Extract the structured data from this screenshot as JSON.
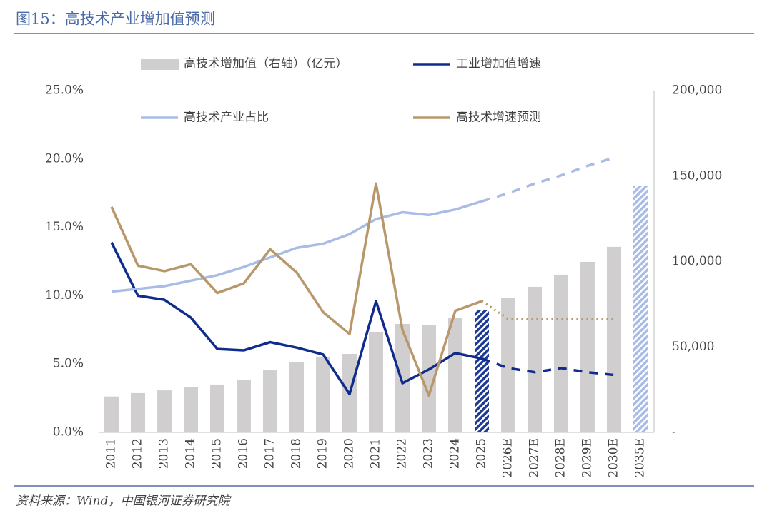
{
  "chart_data": {
    "type": "bar-line",
    "title": "图15：高技术产业增加值预测",
    "source": "资料来源：Wind，中国银河证券研究院",
    "categories": [
      "2011",
      "2012",
      "2013",
      "2014",
      "2015",
      "2016",
      "2017",
      "2018",
      "2019",
      "2020",
      "2021",
      "2022",
      "2023",
      "2024",
      "2025",
      "2026E",
      "2027E",
      "2028E",
      "2029E",
      "2030E",
      "2035E"
    ],
    "ylim": [
      0,
      25
    ],
    "yticks": [
      {
        "value": 0,
        "label": "0.0%"
      },
      {
        "value": 5,
        "label": "5.0%"
      },
      {
        "value": 10,
        "label": "10.0%"
      },
      {
        "value": 15,
        "label": "15.0%"
      },
      {
        "value": 20,
        "label": "20.0%"
      },
      {
        "value": 25,
        "label": "25.0%"
      }
    ],
    "y2lim": [
      0,
      200000
    ],
    "y2ticks": [
      {
        "value": 0,
        "label": "-"
      },
      {
        "value": 50000,
        "label": "50,000"
      },
      {
        "value": 100000,
        "label": "100,000"
      },
      {
        "value": 150000,
        "label": "150,000"
      },
      {
        "value": 200000,
        "label": "200,000"
      }
    ],
    "series": [
      {
        "name": "高技术增加值（右轴）（亿元）",
        "type": "bar",
        "axis": "y2",
        "color": "#d0cece",
        "values": [
          21000,
          23000,
          24600,
          26700,
          28000,
          30500,
          36300,
          41300,
          44300,
          45900,
          58900,
          63500,
          63000,
          67200,
          71800,
          78900,
          85200,
          92300,
          99800,
          108600,
          144100
        ],
        "colors": [
          "#d0cece",
          "#d0cece",
          "#d0cece",
          "#d0cece",
          "#d0cece",
          "#d0cece",
          "#d0cece",
          "#d0cece",
          "#d0cece",
          "#d0cece",
          "#d0cece",
          "#d0cece",
          "#d0cece",
          "#d0cece",
          "#1f3a93",
          "#d0cece",
          "#d0cece",
          "#d0cece",
          "#d0cece",
          "#d0cece",
          "#a8bce6"
        ],
        "hatched": [
          false,
          false,
          false,
          false,
          false,
          false,
          false,
          false,
          false,
          false,
          false,
          false,
          false,
          false,
          true,
          false,
          false,
          false,
          false,
          false,
          true
        ]
      },
      {
        "name": "工业增加值增速",
        "type": "line",
        "color": "#0f2c8c",
        "forecast_style": "dashed",
        "values": [
          13.9,
          10.0,
          9.7,
          8.4,
          6.1,
          6.0,
          6.6,
          6.2,
          5.7,
          2.8,
          9.6,
          3.6,
          4.6,
          5.8,
          5.4,
          4.7,
          4.4,
          4.7,
          4.4,
          4.2,
          null
        ]
      },
      {
        "name": "高技术产业占比",
        "type": "line",
        "color": "#a8bce6",
        "forecast_style": "dashed",
        "values": [
          10.3,
          10.5,
          10.7,
          11.1,
          11.5,
          12.1,
          12.8,
          13.5,
          13.8,
          14.5,
          15.6,
          16.1,
          15.9,
          16.3,
          16.9,
          17.5,
          18.2,
          18.8,
          19.5,
          20.1,
          null
        ]
      },
      {
        "name": "高技术增速预测",
        "type": "line",
        "color": "#b8976a",
        "forecast_style": "dotted",
        "values": [
          16.5,
          12.2,
          11.8,
          12.3,
          10.2,
          10.9,
          13.4,
          11.7,
          8.8,
          7.2,
          18.2,
          7.5,
          2.7,
          8.9,
          9.6,
          8.3,
          8.3,
          8.3,
          8.3,
          8.3,
          null
        ]
      }
    ]
  }
}
